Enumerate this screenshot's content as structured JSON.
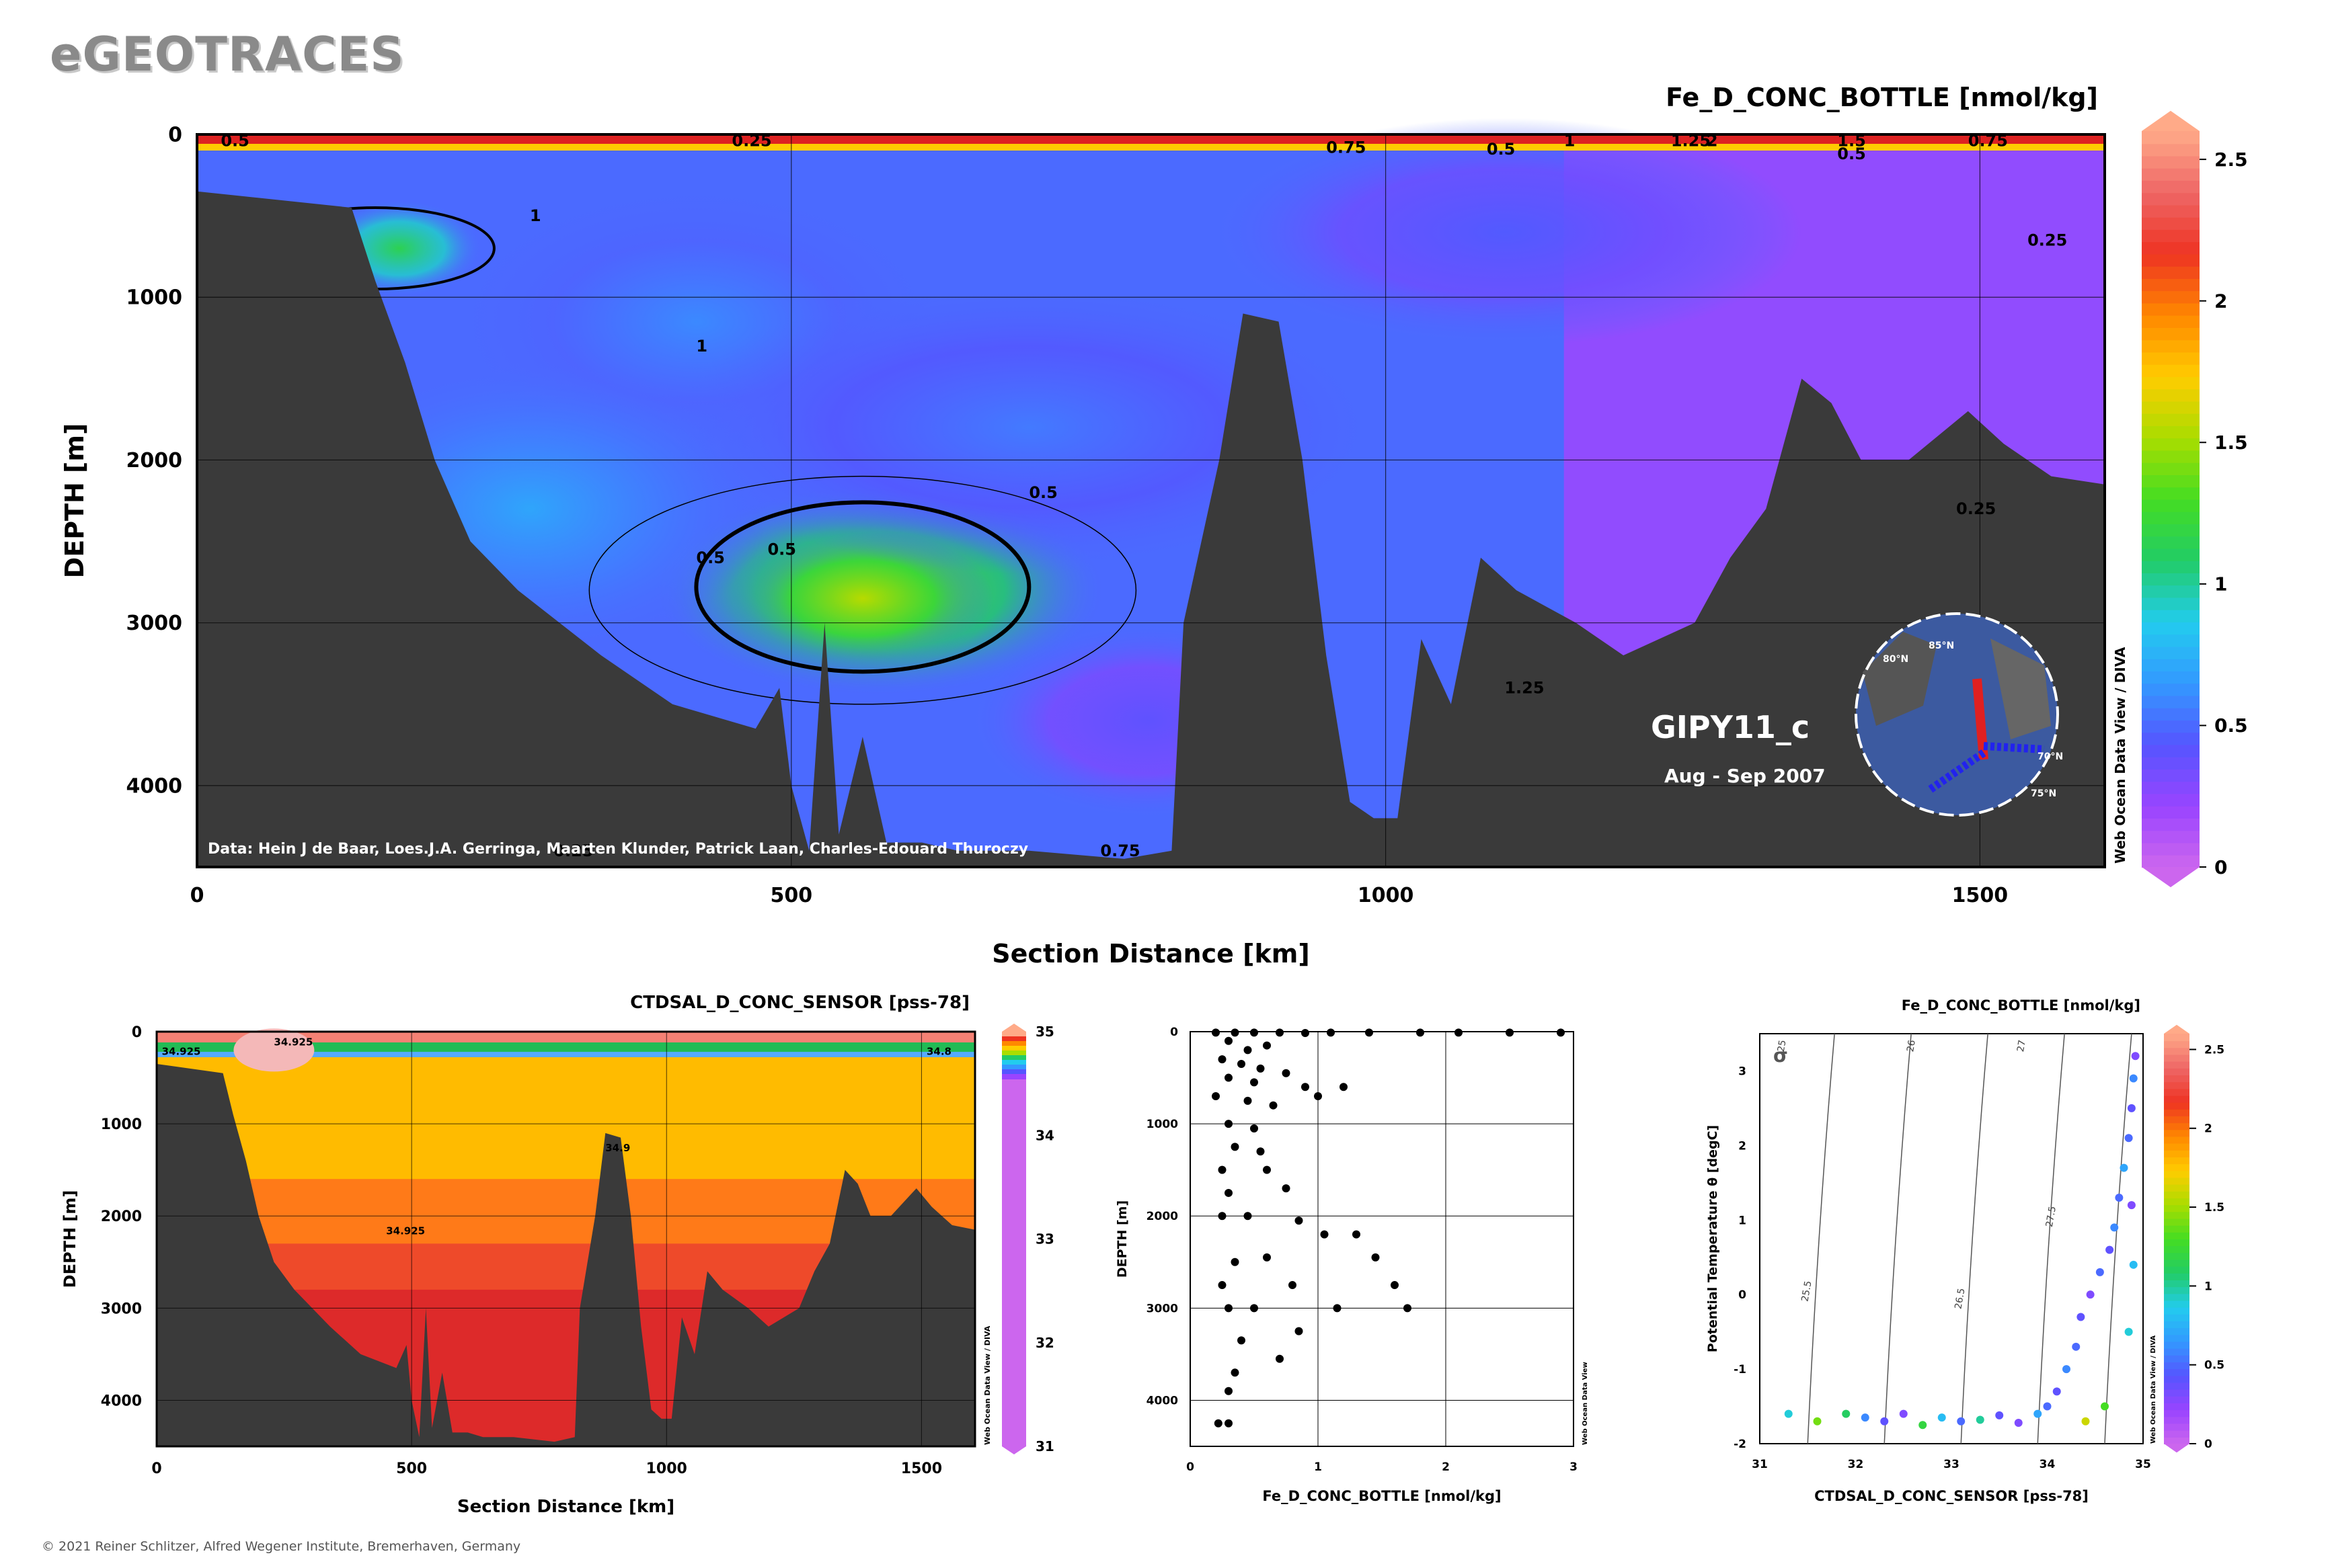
{
  "brand": "eGEOTRACES",
  "copyright": "© 2021 Reiner Schlitzer, Alfred Wegener Institute, Bremerhaven, Germany",
  "watermark": "Web Ocean Data View / DIVA",
  "watermark_short": "Web Ocean Data View",
  "colors": {
    "bathymetry": "#3a3a3a",
    "scale_stops": [
      "#cc66ee",
      "#9944ff",
      "#5555ff",
      "#3399ff",
      "#22ccee",
      "#22cc66",
      "#44dd22",
      "#aadd00",
      "#ffcc00",
      "#ff8800",
      "#ee3322",
      "#ee6666",
      "#ffaa88"
    ]
  },
  "chart_data": [
    {
      "id": "main-section",
      "type": "heatmap",
      "title": "Fe_D_CONC_BOTTLE [nmol/kg]",
      "xlabel": "Section Distance [km]",
      "ylabel": "DEPTH [m]",
      "xlim": [
        0,
        1605
      ],
      "ylim": [
        4500,
        0
      ],
      "xticks": [
        0,
        500,
        1000,
        1500
      ],
      "yticks": [
        0,
        1000,
        2000,
        3000,
        4000
      ],
      "colorbar": {
        "min": 0,
        "max": 2.6,
        "ticks": [
          "0",
          "0.5",
          "1",
          "1.5",
          "2",
          "2.5"
        ]
      },
      "section_label": "GIPY11_c",
      "date_label": "Aug - Sep 2007",
      "credit": "Data: Hein J de Baar, Loes.J.A. Gerringa, Maarten Klunder, Patrick Laan, Charles-Edouard Thuroczy",
      "contour_labels": [
        "0.5",
        "0.25",
        "0.5",
        "1",
        "0.5",
        "0.5",
        "0.5",
        "0.25",
        "0.25",
        "1",
        "1.25",
        "0.75",
        "0.25",
        "0.5",
        "0.75",
        "1",
        "1.25",
        "2",
        "1.5",
        "0.75"
      ],
      "inset_map_labels": [
        "85°N",
        "80°N",
        "75°N",
        "70°N"
      ],
      "bathymetry": [
        [
          0,
          350
        ],
        [
          130,
          450
        ],
        [
          150,
          900
        ],
        [
          175,
          1400
        ],
        [
          200,
          2000
        ],
        [
          230,
          2500
        ],
        [
          270,
          2800
        ],
        [
          340,
          3200
        ],
        [
          400,
          3500
        ],
        [
          470,
          3650
        ],
        [
          490,
          3400
        ],
        [
          500,
          4000
        ],
        [
          515,
          4400
        ],
        [
          528,
          3000
        ],
        [
          540,
          4300
        ],
        [
          560,
          3700
        ],
        [
          580,
          4350
        ],
        [
          610,
          4350
        ],
        [
          640,
          4400
        ],
        [
          700,
          4400
        ],
        [
          780,
          4450
        ],
        [
          820,
          4400
        ],
        [
          830,
          3000
        ],
        [
          860,
          2000
        ],
        [
          880,
          1100
        ],
        [
          910,
          1150
        ],
        [
          930,
          2000
        ],
        [
          950,
          3200
        ],
        [
          970,
          4100
        ],
        [
          990,
          4200
        ],
        [
          1010,
          4200
        ],
        [
          1030,
          3100
        ],
        [
          1055,
          3500
        ],
        [
          1080,
          2600
        ],
        [
          1110,
          2800
        ],
        [
          1160,
          3000
        ],
        [
          1200,
          3200
        ],
        [
          1260,
          3000
        ],
        [
          1290,
          2600
        ],
        [
          1320,
          2300
        ],
        [
          1350,
          1500
        ],
        [
          1375,
          1650
        ],
        [
          1400,
          2000
        ],
        [
          1440,
          2000
        ],
        [
          1490,
          1700
        ],
        [
          1520,
          1900
        ],
        [
          1560,
          2100
        ],
        [
          1605,
          2150
        ]
      ],
      "blobs": [
        {
          "x": 575,
          "y": 2800,
          "r": [
            190,
            650
          ],
          "v": 1.35
        },
        {
          "x": 560,
          "y": 2850,
          "r": [
            110,
            420
          ],
          "v": 1.55
        },
        {
          "x": 170,
          "y": 700,
          "r": [
            70,
            300
          ],
          "v": 1.15
        },
        {
          "x": 420,
          "y": 1150,
          "r": [
            220,
            900
          ],
          "v": 0.6
        },
        {
          "x": 280,
          "y": 2300,
          "r": [
            200,
            900
          ],
          "v": 0.7
        },
        {
          "x": 700,
          "y": 1800,
          "r": [
            300,
            900
          ],
          "v": 0.55
        },
        {
          "x": 1100,
          "y": 600,
          "r": [
            250,
            700
          ],
          "v": 0.45
        },
        {
          "x": 800,
          "y": 3600,
          "r": [
            150,
            600
          ],
          "v": 0.4
        }
      ]
    },
    {
      "id": "salinity-section",
      "type": "heatmap",
      "title": "CTDSAL_D_CONC_SENSOR [pss-78]",
      "xlabel": "Section Distance [km]",
      "ylabel": "DEPTH [m]",
      "xlim": [
        0,
        1605
      ],
      "ylim": [
        4500,
        0
      ],
      "xticks": [
        0,
        500,
        1000,
        1500
      ],
      "yticks": [
        0,
        1000,
        2000,
        3000,
        4000
      ],
      "colorbar": {
        "min": 31,
        "max": 35,
        "ticks": [
          "31",
          "32",
          "33",
          "34",
          "35"
        ]
      },
      "contour_labels": [
        "34.925",
        "34.8",
        "34.9",
        "34.925",
        "34.925"
      ]
    },
    {
      "id": "fe-profile",
      "type": "scatter",
      "xlabel": "Fe_D_CONC_BOTTLE [nmol/kg]",
      "ylabel": "DEPTH [m]",
      "xlim": [
        0,
        3
      ],
      "ylim": [
        4500,
        0
      ],
      "xticks": [
        0,
        1,
        2,
        3
      ],
      "yticks": [
        0,
        1000,
        2000,
        3000,
        4000
      ],
      "points": [
        [
          0.2,
          10
        ],
        [
          0.35,
          10
        ],
        [
          0.5,
          10
        ],
        [
          0.7,
          10
        ],
        [
          0.9,
          15
        ],
        [
          1.1,
          10
        ],
        [
          1.4,
          10
        ],
        [
          1.8,
          10
        ],
        [
          2.1,
          10
        ],
        [
          2.5,
          10
        ],
        [
          2.9,
          10
        ],
        [
          0.3,
          100
        ],
        [
          0.45,
          200
        ],
        [
          0.6,
          150
        ],
        [
          0.25,
          300
        ],
        [
          0.4,
          350
        ],
        [
          0.55,
          400
        ],
        [
          0.75,
          450
        ],
        [
          0.3,
          500
        ],
        [
          0.5,
          550
        ],
        [
          0.9,
          600
        ],
        [
          0.2,
          700
        ],
        [
          0.45,
          750
        ],
        [
          0.65,
          800
        ],
        [
          1.2,
          600
        ],
        [
          1.0,
          700
        ],
        [
          0.3,
          1000
        ],
        [
          0.5,
          1050
        ],
        [
          0.35,
          1250
        ],
        [
          0.55,
          1300
        ],
        [
          0.25,
          1500
        ],
        [
          0.6,
          1500
        ],
        [
          0.75,
          1700
        ],
        [
          0.3,
          1750
        ],
        [
          0.45,
          2000
        ],
        [
          0.25,
          2000
        ],
        [
          0.85,
          2050
        ],
        [
          1.05,
          2200
        ],
        [
          1.3,
          2200
        ],
        [
          1.45,
          2450
        ],
        [
          0.6,
          2450
        ],
        [
          0.35,
          2500
        ],
        [
          0.25,
          2750
        ],
        [
          0.8,
          2750
        ],
        [
          1.6,
          2750
        ],
        [
          1.7,
          3000
        ],
        [
          0.3,
          3000
        ],
        [
          0.5,
          3000
        ],
        [
          1.15,
          3000
        ],
        [
          0.85,
          3250
        ],
        [
          0.4,
          3350
        ],
        [
          0.7,
          3550
        ],
        [
          0.35,
          3700
        ],
        [
          0.3,
          3900
        ],
        [
          0.22,
          4250
        ],
        [
          0.3,
          4250
        ]
      ]
    },
    {
      "id": "ts-diagram",
      "type": "scatter",
      "title": "Fe_D_CONC_BOTTLE [nmol/kg]",
      "xlabel": "CTDSAL_D_CONC_SENSOR [pss-78]",
      "ylabel": "Potential Temperature θ [degC]",
      "xlim": [
        31,
        35
      ],
      "ylim": [
        -2,
        3.5
      ],
      "xticks": [
        31,
        32,
        33,
        34,
        35
      ],
      "yticks": [
        -2,
        -1,
        0,
        1,
        2,
        3
      ],
      "sigma_label": "σ",
      "isopycnal_labels": [
        "25",
        "26",
        "27",
        "25.5",
        "26.5",
        "27.5"
      ],
      "colorbar": {
        "min": 0,
        "max": 2.6,
        "ticks": [
          "0",
          "0.5",
          "1",
          "1.5",
          "2",
          "2.5"
        ]
      },
      "points": [
        [
          31.3,
          -1.6,
          0.9
        ],
        [
          31.6,
          -1.7,
          1.4
        ],
        [
          31.9,
          -1.6,
          1.1
        ],
        [
          32.1,
          -1.65,
          0.6
        ],
        [
          32.3,
          -1.7,
          0.4
        ],
        [
          32.5,
          -1.6,
          0.3
        ],
        [
          32.7,
          -1.75,
          1.2
        ],
        [
          32.9,
          -1.65,
          0.8
        ],
        [
          33.1,
          -1.7,
          0.5
        ],
        [
          33.3,
          -1.68,
          1.0
        ],
        [
          33.5,
          -1.62,
          0.4
        ],
        [
          33.7,
          -1.72,
          0.3
        ],
        [
          33.9,
          -1.6,
          0.7
        ],
        [
          34.0,
          -1.5,
          0.5
        ],
        [
          34.1,
          -1.3,
          0.4
        ],
        [
          34.2,
          -1.0,
          0.6
        ],
        [
          34.3,
          -0.7,
          0.5
        ],
        [
          34.35,
          -0.3,
          0.4
        ],
        [
          34.45,
          0.0,
          0.3
        ],
        [
          34.55,
          0.3,
          0.5
        ],
        [
          34.65,
          0.6,
          0.4
        ],
        [
          34.7,
          0.9,
          0.6
        ],
        [
          34.75,
          1.3,
          0.5
        ],
        [
          34.8,
          1.7,
          0.7
        ],
        [
          34.85,
          2.1,
          0.5
        ],
        [
          34.88,
          2.5,
          0.4
        ],
        [
          34.9,
          2.9,
          0.6
        ],
        [
          34.92,
          3.2,
          0.3
        ],
        [
          34.88,
          1.2,
          0.3
        ],
        [
          34.9,
          0.4,
          0.8
        ],
        [
          34.85,
          -0.5,
          0.9
        ],
        [
          34.6,
          -1.5,
          1.3
        ],
        [
          34.4,
          -1.7,
          1.6
        ]
      ]
    }
  ]
}
